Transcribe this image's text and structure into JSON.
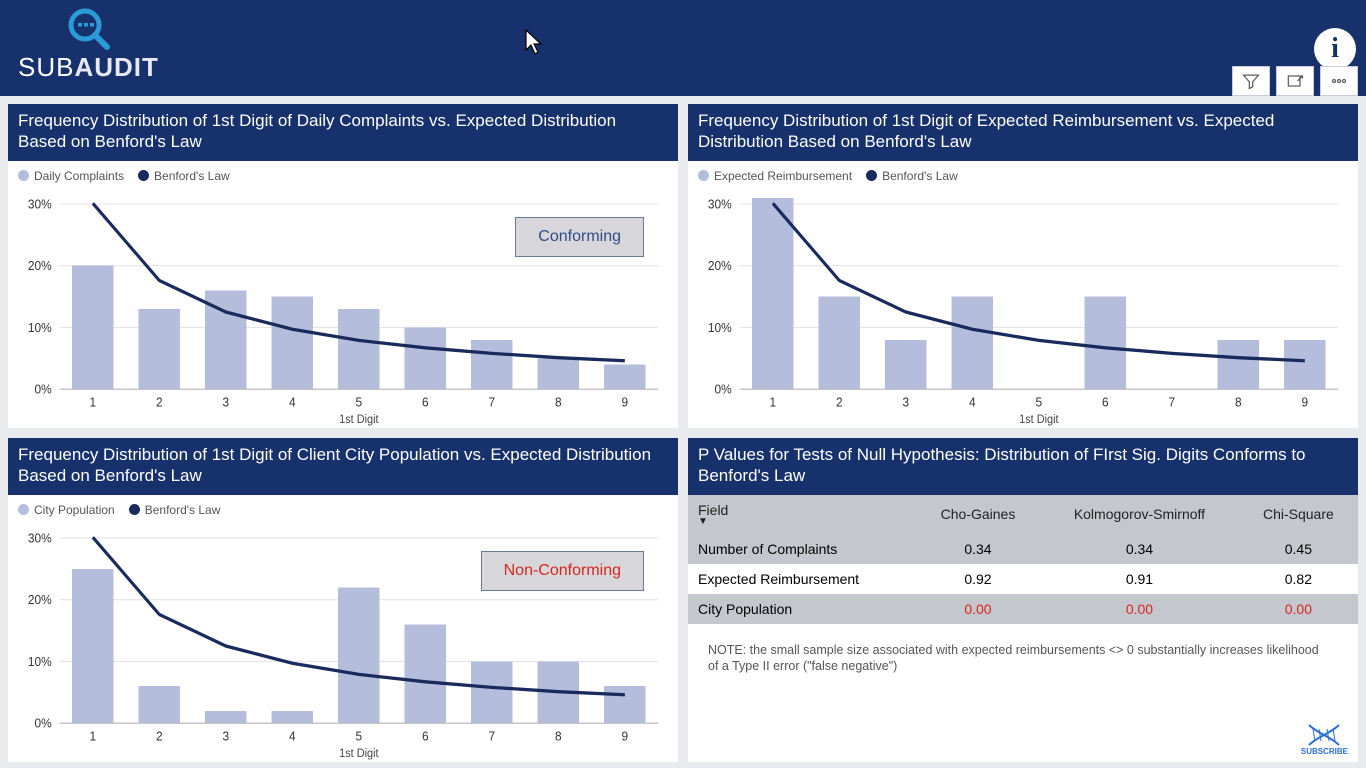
{
  "brand": {
    "sub": "SUB",
    "audit": "AUDIT"
  },
  "colors": {
    "header_bg": "#16316b",
    "page_bg": "#e9eaee",
    "panel_bg": "#ffffff",
    "bar_fill": "#b4bedc",
    "line_stroke": "#1b2a5c",
    "grid": "#e4e5ea",
    "axis": "#b7b8bf",
    "status_border": "#6b7999",
    "status_bg": "#d7d7db",
    "conforming_text": "#314a85",
    "nonconforming_text": "#d8261c",
    "table_header_bg": "#c5c7cf"
  },
  "charts": {
    "common": {
      "categories": [
        "1",
        "2",
        "3",
        "4",
        "5",
        "6",
        "7",
        "8",
        "9"
      ],
      "benford": [
        30.1,
        17.6,
        12.5,
        9.7,
        7.9,
        6.7,
        5.8,
        5.1,
        4.6
      ],
      "yticks": [
        0,
        10,
        20,
        30
      ],
      "ytick_labels": [
        "0%",
        "10%",
        "20%",
        "30%"
      ],
      "ymax": 32,
      "x_axis_title": "1st Digit",
      "bar_width": 0.62
    },
    "complaints": {
      "title": "Frequency Distribution of 1st Digit of Daily Complaints vs. Expected Distribution Based on Benford's Law",
      "series_label": "Daily Complaints",
      "line_label": "Benford's Law",
      "values": [
        20,
        13,
        16,
        15,
        13,
        10,
        8,
        5,
        4
      ],
      "status_text": "Conforming",
      "status_color": "#314a85"
    },
    "reimbursement": {
      "title": "Frequency Distribution of 1st Digit of Expected Reimbursement vs. Expected Distribution Based on Benford's Law",
      "series_label": "Expected Reimbursement",
      "line_label": "Benford's Law",
      "values": [
        31,
        15,
        8,
        15,
        0,
        15,
        0,
        8,
        8
      ]
    },
    "population": {
      "title": "Frequency Distribution of 1st Digit of Client City Population vs. Expected Distribution Based on Benford's Law",
      "series_label": "City Population",
      "line_label": "Benford's Law",
      "values": [
        25,
        6,
        2,
        2,
        22,
        16,
        10,
        10,
        6
      ],
      "status_text": "Non-Conforming",
      "status_color": "#d8261c"
    }
  },
  "pvalues": {
    "title": "P Values for Tests of Null Hypothesis: Distribution of FIrst Sig. Digits Conforms to Benford's Law",
    "columns": [
      "Field",
      "Cho-Gaines",
      "Kolmogorov-Smirnoff",
      "Chi-Square"
    ],
    "rows": [
      {
        "field": "Number of Complaints",
        "cho": "0.34",
        "ks": "0.34",
        "chi": "0.45",
        "red": false
      },
      {
        "field": "Expected Reimbursement",
        "cho": "0.92",
        "ks": "0.91",
        "chi": "0.82",
        "red": false
      },
      {
        "field": "City Population",
        "cho": "0.00",
        "ks": "0.00",
        "chi": "0.00",
        "red": true
      }
    ],
    "note": "NOTE: the small sample size associated with expected reimbursements <> 0 substantially increases likelihood of a Type II error (\"false negative\")",
    "subscribe_label": "SUBSCRIBE"
  }
}
